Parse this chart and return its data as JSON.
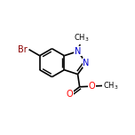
{
  "background_color": "#ffffff",
  "bond_color": "#000000",
  "atom_colors": {
    "Br": "#8B0000",
    "N": "#0000cd",
    "O": "#ff0000",
    "C": "#000000"
  },
  "figsize": [
    1.52,
    1.52
  ],
  "dpi": 100,
  "bond_lw": 1.2,
  "font_size": 7.0,
  "font_size_small": 6.0
}
